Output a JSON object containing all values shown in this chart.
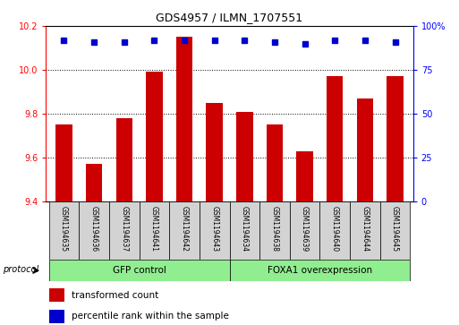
{
  "title": "GDS4957 / ILMN_1707551",
  "samples": [
    "GSM1194635",
    "GSM1194636",
    "GSM1194637",
    "GSM1194641",
    "GSM1194642",
    "GSM1194643",
    "GSM1194634",
    "GSM1194638",
    "GSM1194639",
    "GSM1194640",
    "GSM1194644",
    "GSM1194645"
  ],
  "transformed_counts": [
    9.75,
    9.57,
    9.78,
    9.99,
    10.15,
    9.85,
    9.81,
    9.75,
    9.63,
    9.97,
    9.87,
    9.97
  ],
  "percentile_ranks": [
    92,
    91,
    91,
    92,
    92,
    92,
    92,
    91,
    90,
    92,
    92,
    91
  ],
  "ylim_left": [
    9.4,
    10.2
  ],
  "ylim_right": [
    0,
    100
  ],
  "yticks_left": [
    9.4,
    9.6,
    9.8,
    10.0,
    10.2
  ],
  "yticks_right": [
    0,
    25,
    50,
    75,
    100
  ],
  "groups": [
    {
      "label": "GFP control",
      "start": 0,
      "end": 5
    },
    {
      "label": "FOXA1 overexpression",
      "start": 6,
      "end": 11
    }
  ],
  "group_color": "#90EE90",
  "bar_color": "#CC0000",
  "dot_color": "#0000CC",
  "bar_width": 0.55,
  "legend_items": [
    {
      "label": "transformed count",
      "color": "#CC0000"
    },
    {
      "label": "percentile rank within the sample",
      "color": "#0000CC"
    }
  ],
  "protocol_label": "protocol",
  "label_bg": "#d3d3d3",
  "figsize": [
    5.13,
    3.63
  ],
  "dpi": 100
}
